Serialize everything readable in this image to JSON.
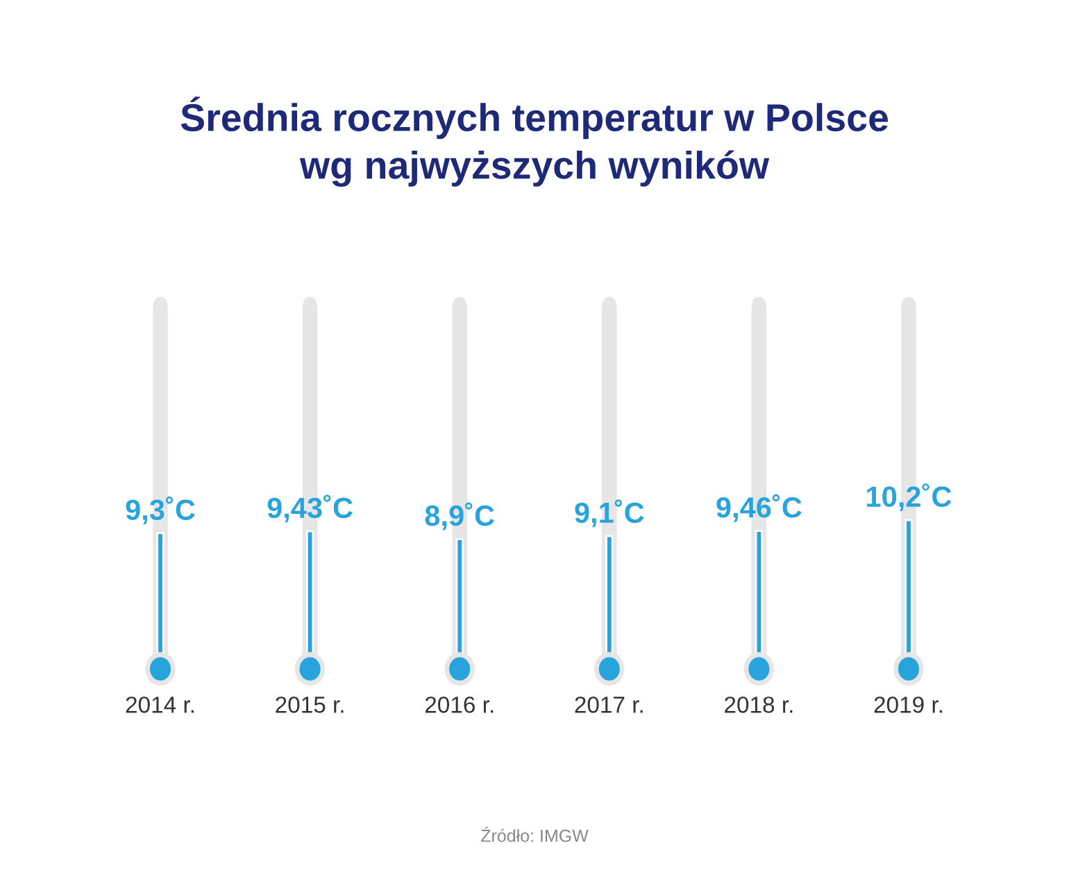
{
  "chart_data": {
    "type": "bar",
    "title": "Średnia rocznych temperatur w Polsce\nwg najwyższych wyników",
    "categories": [
      "2014 r.",
      "2015 r.",
      "2016 r.",
      "2017 r.",
      "2018 r.",
      "2019 r."
    ],
    "values": [
      9.3,
      9.43,
      8.9,
      9.1,
      9.46,
      10.2
    ],
    "value_labels": [
      "9,3˚C",
      "9,43˚C",
      "8,9˚C",
      "9,1˚C",
      "9,46˚C",
      "10,2˚C"
    ],
    "color": "#29a3dc",
    "annotations": [
      "Źródło: IMGW"
    ]
  }
}
